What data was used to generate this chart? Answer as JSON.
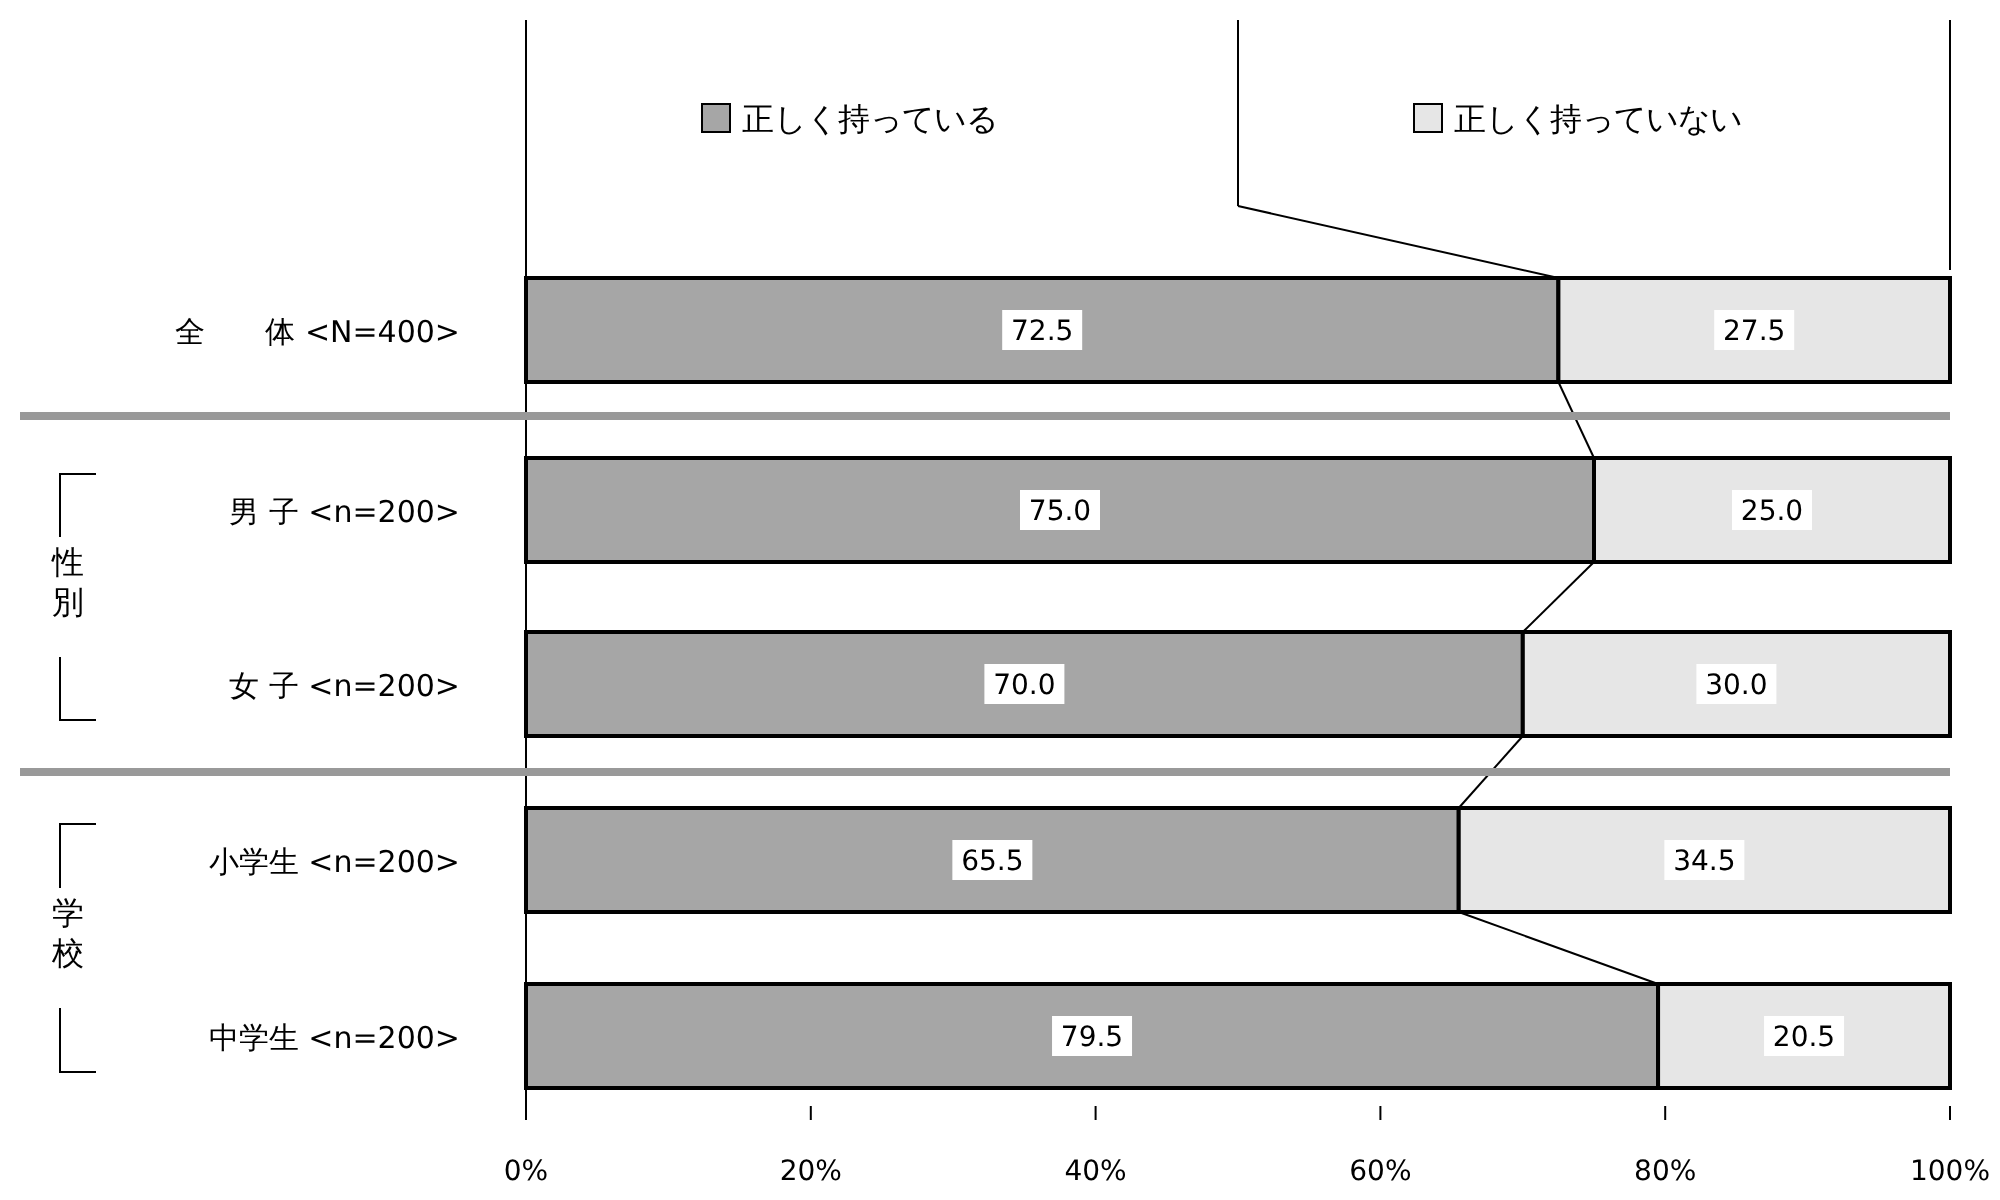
{
  "chart_data": {
    "type": "bar",
    "orientation": "horizontal",
    "stacked": true,
    "legend": "top",
    "categories": [
      "全　　体 <N=400>",
      "男 子 <n=200>",
      "女 子 <n=200>",
      "小学生 <n=200>",
      "中学生 <n=200>"
    ],
    "series": [
      {
        "name": "正しく持っている",
        "color": "#a6a6a6",
        "values": [
          72.5,
          75.0,
          70.0,
          65.5,
          79.5
        ],
        "value_labels": [
          "72.5",
          "75.0",
          "70.0",
          "65.5",
          "79.5"
        ]
      },
      {
        "name": "正しく持っていない",
        "color": "#e6e6e6",
        "values": [
          27.5,
          25.0,
          30.0,
          34.5,
          20.5
        ],
        "value_labels": [
          "27.5",
          "25.0",
          "30.0",
          "34.5",
          "20.5"
        ]
      }
    ],
    "xlim": [
      0,
      100
    ],
    "xticks": [
      {
        "value": 0,
        "label": "0%"
      },
      {
        "value": 20,
        "label": "20%"
      },
      {
        "value": 40,
        "label": "40%"
      },
      {
        "value": 60,
        "label": "60%"
      },
      {
        "value": 80,
        "label": "80%"
      },
      {
        "value": 100,
        "label": "100%"
      }
    ],
    "annotations": [
      "性別",
      "学校"
    ]
  }
}
